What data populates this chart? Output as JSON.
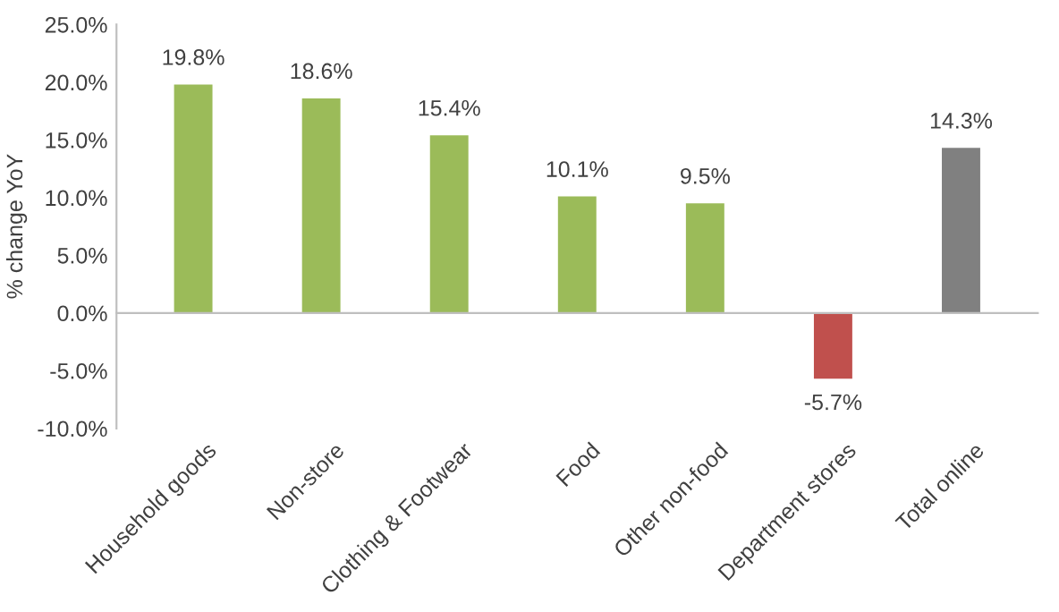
{
  "chart_data": {
    "type": "bar",
    "ylabel": "% change YoY",
    "categories": [
      "Household goods",
      "Non-store",
      "Clothing & Footwear",
      "Food",
      "Other non-food",
      "Department stores",
      "Total online"
    ],
    "values": [
      19.8,
      18.6,
      15.4,
      10.1,
      9.5,
      -5.7,
      14.3
    ],
    "colors": [
      "#9bbb59",
      "#9bbb59",
      "#9bbb59",
      "#9bbb59",
      "#9bbb59",
      "#c0504d",
      "#808080"
    ],
    "value_labels": [
      "19.8%",
      "18.6%",
      "15.4%",
      "10.1%",
      "9.5%",
      "-5.7%",
      "14.3%"
    ],
    "ylim": [
      -10,
      25
    ],
    "yticks": [
      {
        "value": -10,
        "label": "-10.0%"
      },
      {
        "value": -5,
        "label": "-5.0%"
      },
      {
        "value": 0,
        "label": "0.0%"
      },
      {
        "value": 5,
        "label": "5.0%"
      },
      {
        "value": 10,
        "label": "10.0%"
      },
      {
        "value": 15,
        "label": "15.0%"
      },
      {
        "value": 20,
        "label": "20.0%"
      },
      {
        "value": 25,
        "label": "25.0%"
      }
    ],
    "legend": false
  }
}
